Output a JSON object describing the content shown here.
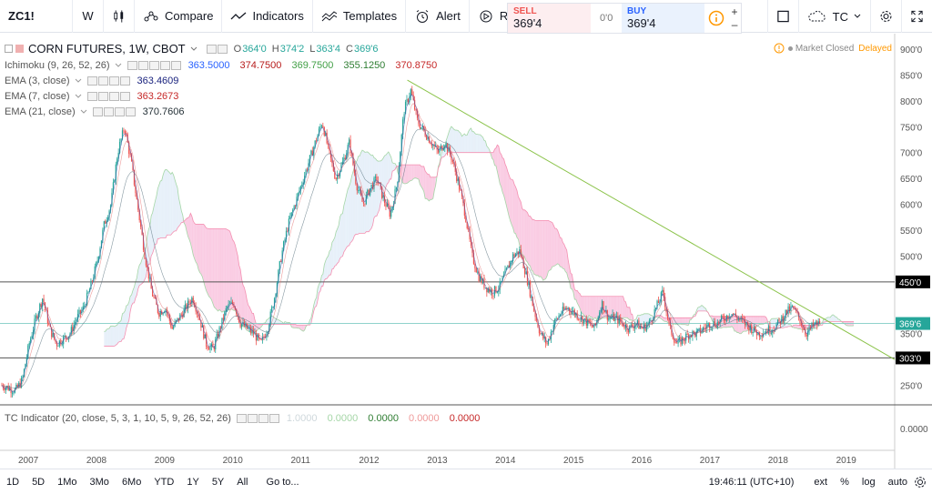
{
  "toolbar": {
    "symbol": "ZC1!",
    "interval": "W",
    "compare_label": "Compare",
    "indicators_label": "Indicators",
    "templates_label": "Templates",
    "alert_label": "Alert",
    "replay_label": "Replay",
    "tc_label": "TC"
  },
  "trade": {
    "sell_label": "SELL",
    "sell_price": "369'4",
    "spread": "0'0",
    "buy_label": "BUY",
    "buy_price": "369'4"
  },
  "legend": {
    "main_title": "CORN FUTURES, 1W, CBOT",
    "ohlc": {
      "o": "O",
      "o_val": "364'0",
      "h": "H",
      "h_val": "374'2",
      "l": "L",
      "l_val": "363'4",
      "c": "C",
      "c_val": "369'6"
    },
    "ichimoku": {
      "label": "Ichimoku (9, 26, 52, 26)",
      "values": [
        "363.5000",
        "374.7500",
        "369.7500",
        "355.1250",
        "370.8750"
      ]
    },
    "ema3": {
      "label": "EMA (3, close)",
      "value": "363.4609"
    },
    "ema7": {
      "label": "EMA (7, close)",
      "value": "363.2673"
    },
    "ema21": {
      "label": "EMA (21, close)",
      "value": "370.7606"
    },
    "tc": {
      "label": "TC Indicator (20, close, 5, 3, 1, 10, 5, 9, 26, 52, 26)",
      "values": [
        "1.0000",
        "0.0000",
        "0.0000",
        "0.0000",
        "0.0000"
      ]
    }
  },
  "status": {
    "market": "Market Closed",
    "delayed": "Delayed"
  },
  "price_axis": {
    "ticks": [
      "900'0",
      "850'0",
      "800'0",
      "750'0",
      "700'0",
      "650'0",
      "600'0",
      "550'0",
      "500'0",
      "350'0",
      "250'0"
    ],
    "tags": {
      "upper": "450'0",
      "last": "369'6",
      "lower": "303'0"
    },
    "sub_tick": "0.0000"
  },
  "time_axis": [
    "2007",
    "2008",
    "2009",
    "2010",
    "2011",
    "2012",
    "2013",
    "2014",
    "2015",
    "2016",
    "2017",
    "2018",
    "2019"
  ],
  "bottombar": {
    "ranges": [
      "1D",
      "5D",
      "1Mo",
      "3Mo",
      "6Mo",
      "YTD",
      "1Y",
      "5Y",
      "All"
    ],
    "goto": "Go to...",
    "clock": "19:46:11 (UTC+10)",
    "ext": "ext",
    "pct": "%",
    "log": "log",
    "auto": "auto"
  },
  "colors": {
    "up": "#26a69a",
    "down": "#ef5350",
    "trend": "#8bc34a",
    "cloud_pink": "#f8bbd9",
    "cloud_blue": "#d7e6f5"
  },
  "chart_data": {
    "type": "candlestick",
    "interval": "weekly",
    "y_range": [
      170,
      905
    ],
    "x_range": [
      "2006-07",
      "2019-10"
    ],
    "horizontal_levels": [
      450,
      303
    ],
    "close_series": [
      [
        "2006.6",
        250
      ],
      [
        "2006.8",
        240
      ],
      [
        "2006.9",
        260
      ],
      [
        "2007.0",
        330
      ],
      [
        "2007.1",
        380
      ],
      [
        "2007.2",
        420
      ],
      [
        "2007.3",
        360
      ],
      [
        "2007.4",
        330
      ],
      [
        "2007.6",
        350
      ],
      [
        "2007.7",
        380
      ],
      [
        "2007.8",
        400
      ],
      [
        "2007.9",
        440
      ],
      [
        "2008.0",
        490
      ],
      [
        "2008.1",
        560
      ],
      [
        "2008.2",
        600
      ],
      [
        "2008.3",
        700
      ],
      [
        "2008.4",
        750
      ],
      [
        "2008.5",
        680
      ],
      [
        "2008.6",
        590
      ],
      [
        "2008.7",
        500
      ],
      [
        "2008.8",
        430
      ],
      [
        "2008.9",
        390
      ],
      [
        "2009.0",
        400
      ],
      [
        "2009.1",
        360
      ],
      [
        "2009.2",
        380
      ],
      [
        "2009.3",
        400
      ],
      [
        "2009.4",
        420
      ],
      [
        "2009.5",
        380
      ],
      [
        "2009.6",
        330
      ],
      [
        "2009.7",
        320
      ],
      [
        "2009.8",
        360
      ],
      [
        "2009.9",
        400
      ],
      [
        "2010.0",
        410
      ],
      [
        "2010.1",
        370
      ],
      [
        "2010.2",
        360
      ],
      [
        "2010.3",
        350
      ],
      [
        "2010.4",
        330
      ],
      [
        "2010.5",
        360
      ],
      [
        "2010.6",
        420
      ],
      [
        "2010.7",
        500
      ],
      [
        "2010.8",
        560
      ],
      [
        "2010.9",
        600
      ],
      [
        "2011.0",
        640
      ],
      [
        "2011.1",
        680
      ],
      [
        "2011.2",
        720
      ],
      [
        "2011.3",
        760
      ],
      [
        "2011.4",
        700
      ],
      [
        "2011.5",
        650
      ],
      [
        "2011.6",
        680
      ],
      [
        "2011.7",
        720
      ],
      [
        "2011.8",
        640
      ],
      [
        "2011.9",
        600
      ],
      [
        "2012.0",
        630
      ],
      [
        "2012.1",
        650
      ],
      [
        "2012.2",
        610
      ],
      [
        "2012.3",
        580
      ],
      [
        "2012.4",
        640
      ],
      [
        "2012.5",
        780
      ],
      [
        "2012.6",
        820
      ],
      [
        "2012.7",
        760
      ],
      [
        "2012.8",
        740
      ],
      [
        "2012.9",
        720
      ],
      [
        "2013.0",
        700
      ],
      [
        "2013.1",
        720
      ],
      [
        "2013.2",
        690
      ],
      [
        "2013.3",
        640
      ],
      [
        "2013.4",
        580
      ],
      [
        "2013.5",
        500
      ],
      [
        "2013.6",
        460
      ],
      [
        "2013.7",
        440
      ],
      [
        "2013.8",
        430
      ],
      [
        "2013.9",
        440
      ],
      [
        "2014.0",
        470
      ],
      [
        "2014.1",
        500
      ],
      [
        "2014.2",
        510
      ],
      [
        "2014.3",
        460
      ],
      [
        "2014.4",
        400
      ],
      [
        "2014.5",
        350
      ],
      [
        "2014.6",
        330
      ],
      [
        "2014.7",
        370
      ],
      [
        "2014.8",
        390
      ],
      [
        "2014.9",
        400
      ],
      [
        "2015.0",
        390
      ],
      [
        "2015.1",
        380
      ],
      [
        "2015.2",
        370
      ],
      [
        "2015.3",
        360
      ],
      [
        "2015.4",
        410
      ],
      [
        "2015.5",
        380
      ],
      [
        "2015.6",
        380
      ],
      [
        "2015.7",
        370
      ],
      [
        "2015.8",
        360
      ],
      [
        "2015.9",
        370
      ],
      [
        "2016.0",
        360
      ],
      [
        "2016.1",
        370
      ],
      [
        "2016.2",
        400
      ],
      [
        "2016.3",
        430
      ],
      [
        "2016.4",
        360
      ],
      [
        "2016.5",
        330
      ],
      [
        "2016.6",
        340
      ],
      [
        "2016.7",
        350
      ],
      [
        "2016.8",
        350
      ],
      [
        "2016.9",
        360
      ],
      [
        "2017.0",
        370
      ],
      [
        "2017.1",
        370
      ],
      [
        "2017.2",
        380
      ],
      [
        "2017.3",
        390
      ],
      [
        "2017.4",
        380
      ],
      [
        "2017.5",
        370
      ],
      [
        "2017.6",
        360
      ],
      [
        "2017.7",
        350
      ],
      [
        "2017.8",
        355
      ],
      [
        "2017.9",
        360
      ],
      [
        "2018.0",
        370
      ],
      [
        "2018.1",
        390
      ],
      [
        "2018.2",
        400
      ],
      [
        "2018.3",
        380
      ],
      [
        "2018.4",
        350
      ],
      [
        "2018.5",
        365
      ],
      [
        "2018.6",
        370
      ]
    ],
    "trendline": [
      [
        "2012.55",
        840
      ],
      [
        "2019.7",
        300
      ]
    ]
  }
}
